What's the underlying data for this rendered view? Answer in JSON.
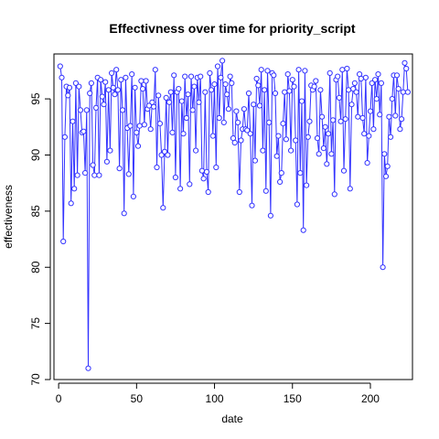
{
  "chart_data": {
    "type": "line",
    "title": "Effectivness over time for priority_script",
    "xlabel": "date",
    "ylabel": "effectiveness",
    "xlim": [
      -3,
      227
    ],
    "ylim": [
      70,
      99
    ],
    "xticks": [
      0,
      50,
      100,
      150,
      200
    ],
    "yticks": [
      70,
      75,
      80,
      85,
      90,
      95
    ],
    "grid": false,
    "legend": "none",
    "series_color": "#3333ff",
    "series": [
      {
        "marker": "open-circle",
        "x": [
          1,
          2,
          3,
          4,
          5,
          6,
          7,
          8,
          9,
          10,
          11,
          12,
          13,
          14,
          15,
          16,
          17,
          18,
          19,
          20,
          21,
          22,
          23,
          24,
          25,
          26,
          27,
          28,
          29,
          30,
          31,
          32,
          33,
          34,
          35,
          36,
          37,
          38,
          39,
          40,
          41,
          42,
          43,
          44,
          45,
          46,
          47,
          48,
          49,
          50,
          51,
          52,
          53,
          54,
          55,
          56,
          57,
          58,
          59,
          60,
          61,
          62,
          63,
          64,
          65,
          66,
          67,
          68,
          69,
          70,
          71,
          72,
          73,
          74,
          75,
          76,
          77,
          78,
          79,
          80,
          81,
          82,
          83,
          84,
          85,
          86,
          87,
          88,
          89,
          90,
          91,
          92,
          93,
          94,
          95,
          96,
          97,
          98,
          99,
          100,
          101,
          102,
          103,
          104,
          105,
          106,
          107,
          108,
          109,
          110,
          111,
          112,
          113,
          114,
          115,
          116,
          117,
          118,
          119,
          120,
          121,
          122,
          123,
          124,
          125,
          126,
          127,
          128,
          129,
          130,
          131,
          132,
          133,
          134,
          135,
          136,
          137,
          138,
          139,
          140,
          141,
          142,
          143,
          144,
          145,
          146,
          147,
          148,
          149,
          150,
          151,
          152,
          153,
          154,
          155,
          156,
          157,
          158,
          159,
          160,
          161,
          162,
          163,
          164,
          165,
          166,
          167,
          168,
          169,
          170,
          171,
          172,
          173,
          174,
          175,
          176,
          177,
          178,
          179,
          180,
          181,
          182,
          183,
          184,
          185,
          186,
          187,
          188,
          189,
          190,
          191,
          192,
          193,
          194,
          195,
          196,
          197,
          198,
          199,
          200,
          201,
          202,
          203,
          204,
          205,
          206,
          207,
          208,
          209,
          210,
          211,
          212,
          213,
          214,
          215,
          216,
          217,
          218,
          219,
          220,
          221,
          222,
          223,
          224
        ],
        "y": [
          97.9,
          96.9,
          82.3,
          91.6,
          96.1,
          95.3,
          96.0,
          85.7,
          93.0,
          87.0,
          96.4,
          88.2,
          96.1,
          94.0,
          92.0,
          92.1,
          88.4,
          94.0,
          71.0,
          95.5,
          96.4,
          89.1,
          88.2,
          94.2,
          96.9,
          88.2,
          96.7,
          95.2,
          94.5,
          96.5,
          89.4,
          95.8,
          90.4,
          97.3,
          96.0,
          95.4,
          97.6,
          95.8,
          88.8,
          96.7,
          94.0,
          84.8,
          96.9,
          92.4,
          88.3,
          92.6,
          97.2,
          86.3,
          96.0,
          92.0,
          90.8,
          92.6,
          96.6,
          95.9,
          92.7,
          96.6,
          94.1,
          94.4,
          92.3,
          94.7,
          94.3,
          97.6,
          88.9,
          95.3,
          92.8,
          90.0,
          85.3,
          90.3,
          95.1,
          90.0,
          94.7,
          95.6,
          92.0,
          97.1,
          88.0,
          95.6,
          95.9,
          87.0,
          94.8,
          91.9,
          97.0,
          93.3,
          95.4,
          87.4,
          97.0,
          94.0,
          96.1,
          90.4,
          96.9,
          94.7,
          97.0,
          88.6,
          87.9,
          95.6,
          88.5,
          86.7,
          97.3,
          95.8,
          91.7,
          96.3,
          88.9,
          97.9,
          93.3,
          96.9,
          98.4,
          92.9,
          96.3,
          95.4,
          94.1,
          97.0,
          96.4,
          91.5,
          91.1,
          93.9,
          92.9,
          86.7,
          91.3,
          92.3,
          94.1,
          92.3,
          92.2,
          95.5,
          91.9,
          85.5,
          94.5,
          89.5,
          96.8,
          96.2,
          94.4,
          97.6,
          90.4,
          95.8,
          86.8,
          97.5,
          92.9,
          84.6,
          97.3,
          97.1,
          95.5,
          89.9,
          91.7,
          87.6,
          88.4,
          92.8,
          95.6,
          91.4,
          97.2,
          95.7,
          90.4,
          96.7,
          96.1,
          91.3,
          85.6,
          97.6,
          88.4,
          94.8,
          83.3,
          97.5,
          87.3,
          91.6,
          93.0,
          96.2,
          95.8,
          96.1,
          96.6,
          91.5,
          90.1,
          95.8,
          93.4,
          90.6,
          92.5,
          89.2,
          91.9,
          97.3,
          90.1,
          93.1,
          86.5,
          96.7,
          97.0,
          95.1,
          93.0,
          97.6,
          88.6,
          93.2,
          97.7,
          95.8,
          87.0,
          94.5,
          95.9,
          96.4,
          95.6,
          93.4,
          97.2,
          96.8,
          93.3,
          91.9,
          96.9,
          89.3,
          91.7,
          93.9,
          96.4,
          92.3,
          96.7,
          95.0,
          97.2,
          93.6,
          96.4,
          80.0,
          90.1,
          88.1,
          89.0,
          93.4,
          91.6,
          95.0,
          97.1,
          93.5,
          97.1,
          95.9,
          92.3,
          93.2,
          95.6,
          98.2,
          97.7,
          95.6
        ]
      }
    ]
  }
}
